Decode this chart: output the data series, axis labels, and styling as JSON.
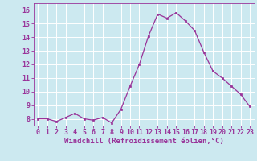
{
  "x": [
    0,
    1,
    2,
    3,
    4,
    5,
    6,
    7,
    8,
    9,
    10,
    11,
    12,
    13,
    14,
    15,
    16,
    17,
    18,
    19,
    20,
    21,
    22,
    23
  ],
  "y": [
    8.0,
    8.0,
    7.8,
    8.1,
    8.4,
    8.0,
    7.9,
    8.1,
    7.7,
    8.7,
    10.4,
    12.0,
    14.1,
    15.7,
    15.4,
    15.8,
    15.2,
    14.5,
    12.9,
    11.5,
    11.0,
    10.4,
    9.8,
    8.9
  ],
  "line_color": "#993399",
  "marker": "s",
  "marker_size": 2.0,
  "bg_color": "#cce9f0",
  "grid_color": "#ffffff",
  "xlabel": "Windchill (Refroidissement éolien,°C)",
  "tick_color": "#993399",
  "ylim": [
    7.5,
    16.5
  ],
  "xlim": [
    -0.5,
    23.5
  ],
  "yticks": [
    8,
    9,
    10,
    11,
    12,
    13,
    14,
    15,
    16
  ],
  "xticks": [
    0,
    1,
    2,
    3,
    4,
    5,
    6,
    7,
    8,
    9,
    10,
    11,
    12,
    13,
    14,
    15,
    16,
    17,
    18,
    19,
    20,
    21,
    22,
    23
  ],
  "xtick_labels": [
    "0",
    "1",
    "2",
    "3",
    "4",
    "5",
    "6",
    "7",
    "8",
    "9",
    "10",
    "11",
    "12",
    "13",
    "14",
    "15",
    "16",
    "17",
    "18",
    "19",
    "20",
    "21",
    "22",
    "23"
  ],
  "ytick_labels": [
    "8",
    "9",
    "10",
    "11",
    "12",
    "13",
    "14",
    "15",
    "16"
  ],
  "tick_fontsize": 6.0,
  "xlabel_fontsize": 6.5
}
